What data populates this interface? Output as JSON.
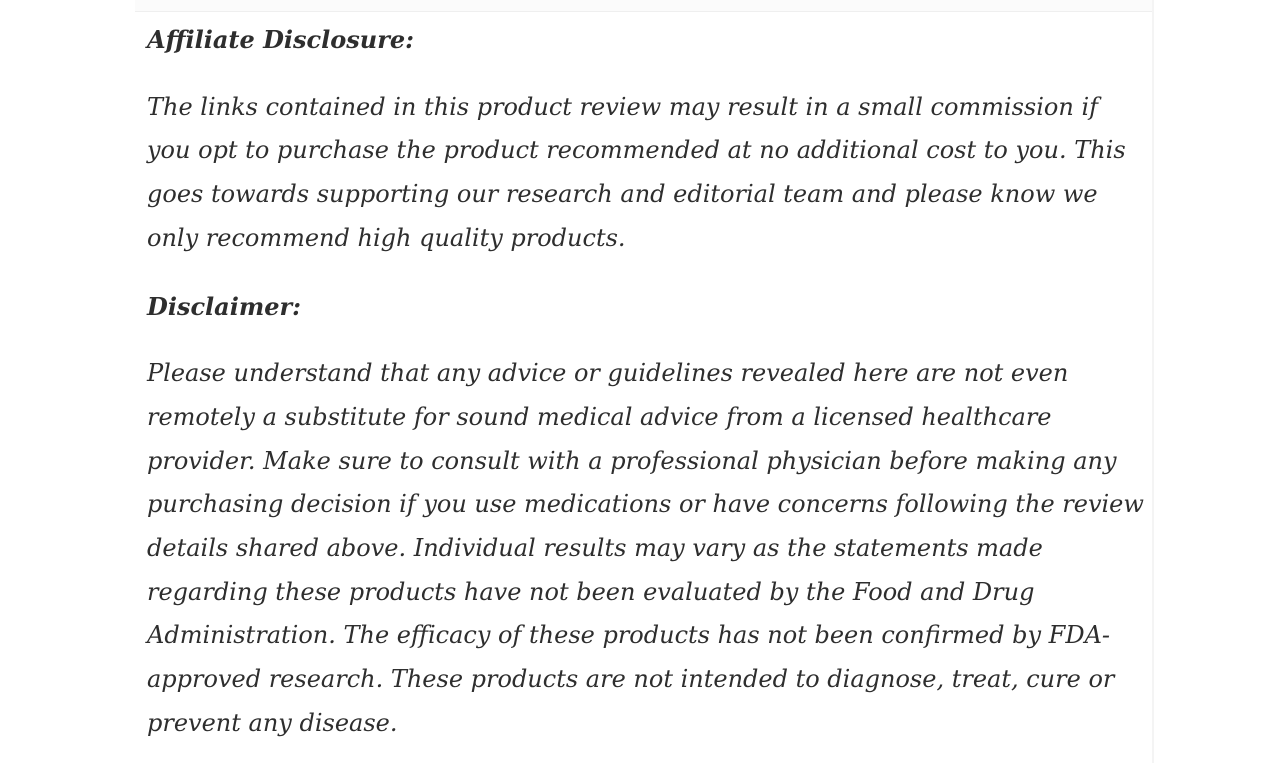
{
  "page": {
    "background_color": "#ffffff",
    "top_band_color": "#fbfbfb",
    "divider_color": "#f4f4f4",
    "text_color": "#2e2e2e"
  },
  "article": {
    "sections": [
      {
        "heading": "Affiliate Disclosure:",
        "body": "The links contained in this product review may result in a small commission if\nyou opt to purchase the product recommended at no additional cost to you. This\ngoes towards supporting our research and editorial team and please know we\nonly recommend high quality products."
      },
      {
        "heading": "Disclaimer:",
        "body": "Please understand that any advice or guidelines revealed here are not even\nremotely a substitute for sound medical advice from a licensed healthcare\nprovider. Make sure to consult with a professional physician before making any\npurchasing decision if you use medications or have concerns following the review\ndetails shared above. Individual results may vary as the statements made\nregarding these products have not been evaluated by the Food and Drug\nAdministration. The efficacy of these products has not been confirmed by FDA-\napproved research. These products are not intended to diagnose, treat, cure or\nprevent any disease."
      }
    ]
  }
}
